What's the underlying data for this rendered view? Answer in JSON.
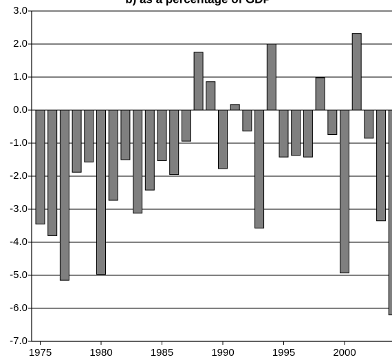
{
  "chart_data": {
    "type": "bar",
    "title": "b) as a percentage of GDP",
    "xlabel": "",
    "ylabel": "",
    "ylim": [
      -7.0,
      3.0
    ],
    "y_ticks": [
      "3.0",
      "2.0",
      "1.0",
      "0.0",
      "-1.0",
      "-2.0",
      "-3.0",
      "-4.0",
      "-5.0",
      "-6.0",
      "-7.0"
    ],
    "x_ticks": [
      "1975",
      "1980",
      "1985",
      "1990",
      "1995",
      "2000"
    ],
    "grid": true,
    "categories": [
      1975,
      1976,
      1977,
      1978,
      1979,
      1980,
      1981,
      1982,
      1983,
      1984,
      1985,
      1986,
      1987,
      1988,
      1989,
      1990,
      1991,
      1992,
      1993,
      1994,
      1995,
      1996,
      1997,
      1998,
      1999,
      2000,
      2001,
      2002,
      2003,
      2004
    ],
    "values": [
      -3.45,
      -3.8,
      -5.15,
      -1.88,
      -1.57,
      -4.97,
      -2.73,
      -1.5,
      -3.12,
      -2.42,
      -1.53,
      -1.95,
      -0.94,
      1.75,
      0.86,
      -1.77,
      0.17,
      -0.63,
      -3.57,
      2.0,
      -1.42,
      -1.37,
      -1.42,
      0.98,
      -0.74,
      -4.93,
      2.32,
      -0.85,
      -3.35,
      -6.2
    ],
    "colors": {
      "bar": "#7f7f7f",
      "outline": "#000000"
    }
  }
}
